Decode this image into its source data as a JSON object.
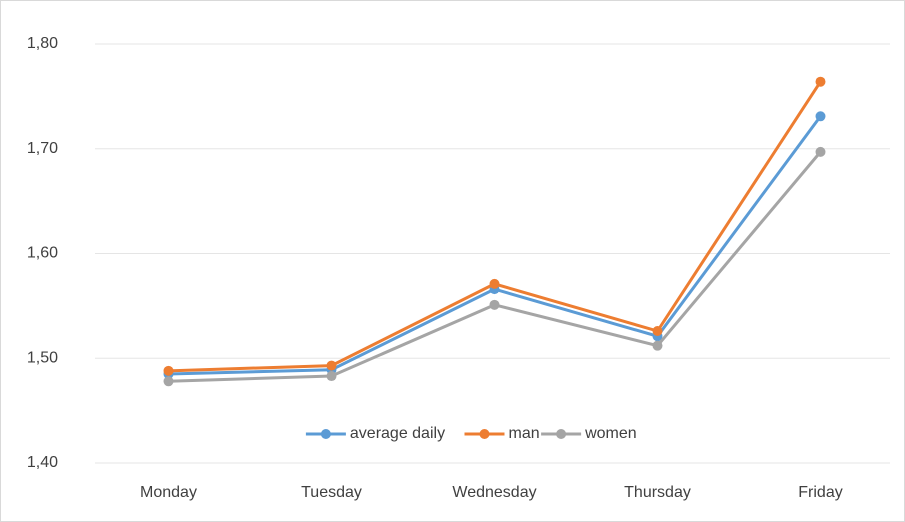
{
  "chart_data": {
    "type": "line",
    "categories": [
      "Monday",
      "Tuesday",
      "Wednesday",
      "Thursday",
      "Friday"
    ],
    "series": [
      {
        "name": "average daily",
        "color": "#5b9bd5",
        "values": [
          1.485,
          1.489,
          1.566,
          1.521,
          1.731
        ]
      },
      {
        "name": "man",
        "color": "#ed7d31",
        "values": [
          1.488,
          1.493,
          1.571,
          1.526,
          1.764
        ]
      },
      {
        "name": "women",
        "color": "#a5a5a5",
        "values": [
          1.478,
          1.483,
          1.551,
          1.512,
          1.697
        ]
      }
    ],
    "ylim": [
      1.4,
      1.8
    ],
    "yticks": [
      {
        "value": 1.4,
        "label": "1,40"
      },
      {
        "value": 1.5,
        "label": "1,50"
      },
      {
        "value": 1.6,
        "label": "1,60"
      },
      {
        "value": 1.7,
        "label": "1,70"
      },
      {
        "value": 1.8,
        "label": "1,80"
      }
    ],
    "grid": true,
    "legend": "bottom"
  }
}
